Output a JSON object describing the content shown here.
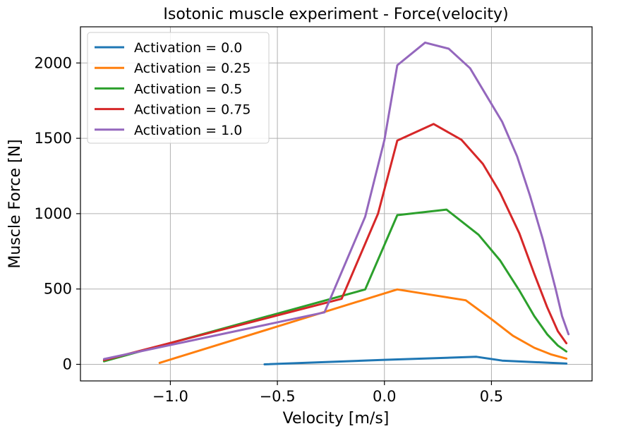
{
  "chart_data": {
    "type": "line",
    "title": "Isotonic muscle experiment - Force(velocity)",
    "xlabel": "Velocity [m/s]",
    "ylabel": "Muscle Force [N]",
    "xlim": [
      -1.42,
      0.97
    ],
    "ylim": [
      -110,
      2240
    ],
    "xticks": [
      -1.0,
      -0.5,
      0.0,
      0.5
    ],
    "xtick_labels": [
      "−1.0",
      "−0.5",
      "0.0",
      "0.5"
    ],
    "yticks": [
      0,
      500,
      1000,
      1500,
      2000
    ],
    "ytick_labels": [
      "0",
      "500",
      "1000",
      "1500",
      "2000"
    ],
    "grid": true,
    "legend_position": "top-left",
    "series": [
      {
        "name": "Activation = 0.0",
        "color": "#1f77b4",
        "x": [
          -0.56,
          0.0,
          0.43,
          0.55,
          0.85
        ],
        "y": [
          0,
          30,
          50,
          25,
          5
        ]
      },
      {
        "name": "Activation = 0.25",
        "color": "#ff7f0e",
        "x": [
          -1.05,
          0.06,
          0.38,
          0.5,
          0.6,
          0.7,
          0.78,
          0.85
        ],
        "y": [
          10,
          497,
          425,
          300,
          190,
          110,
          65,
          38
        ]
      },
      {
        "name": "Activation = 0.5",
        "color": "#2ca02c",
        "x": [
          -1.31,
          -0.09,
          0.06,
          0.29,
          0.44,
          0.54,
          0.63,
          0.7,
          0.76,
          0.81,
          0.85
        ],
        "y": [
          20,
          497,
          990,
          1027,
          860,
          690,
          490,
          320,
          200,
          125,
          85
        ]
      },
      {
        "name": "Activation = 0.75",
        "color": "#d62728",
        "x": [
          -1.31,
          -0.2,
          -0.03,
          0.06,
          0.23,
          0.36,
          0.46,
          0.54,
          0.63,
          0.7,
          0.76,
          0.81,
          0.85
        ],
        "y": [
          28,
          435,
          1000,
          1485,
          1595,
          1490,
          1330,
          1140,
          870,
          600,
          380,
          220,
          140
        ]
      },
      {
        "name": "Activation = 1.0",
        "color": "#9467bd",
        "x": [
          -1.31,
          -0.28,
          -0.09,
          0.0,
          0.06,
          0.19,
          0.3,
          0.4,
          0.48,
          0.55,
          0.62,
          0.68,
          0.74,
          0.8,
          0.83,
          0.86
        ],
        "y": [
          35,
          345,
          980,
          1490,
          1985,
          2135,
          2095,
          1965,
          1775,
          1610,
          1380,
          1120,
          830,
          500,
          320,
          200
        ]
      }
    ]
  }
}
